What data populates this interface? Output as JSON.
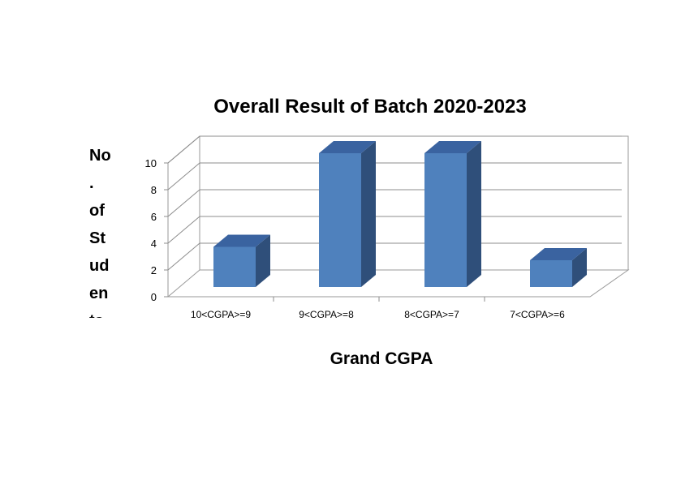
{
  "chart_data": {
    "type": "bar",
    "title": "Overall Result of Batch 2020-2023",
    "xlabel": "Grand CGPA",
    "ylabel": "No. of Students",
    "categories": [
      "10<CGPA>=9",
      "9<CGPA>=8",
      "8<CGPA>=7",
      "7<CGPA>=6"
    ],
    "values": [
      3,
      10,
      10,
      2
    ],
    "ylim": [
      0,
      10
    ],
    "yticks": [
      0,
      2,
      4,
      6,
      8,
      10
    ],
    "grid": true,
    "legend": "none",
    "style": "3d-column",
    "colors": {
      "bar_front": "#4F81BD",
      "bar_side": "#2F4F7A",
      "bar_top": "#3A63A0",
      "gridline": "#8C8C8C"
    }
  }
}
